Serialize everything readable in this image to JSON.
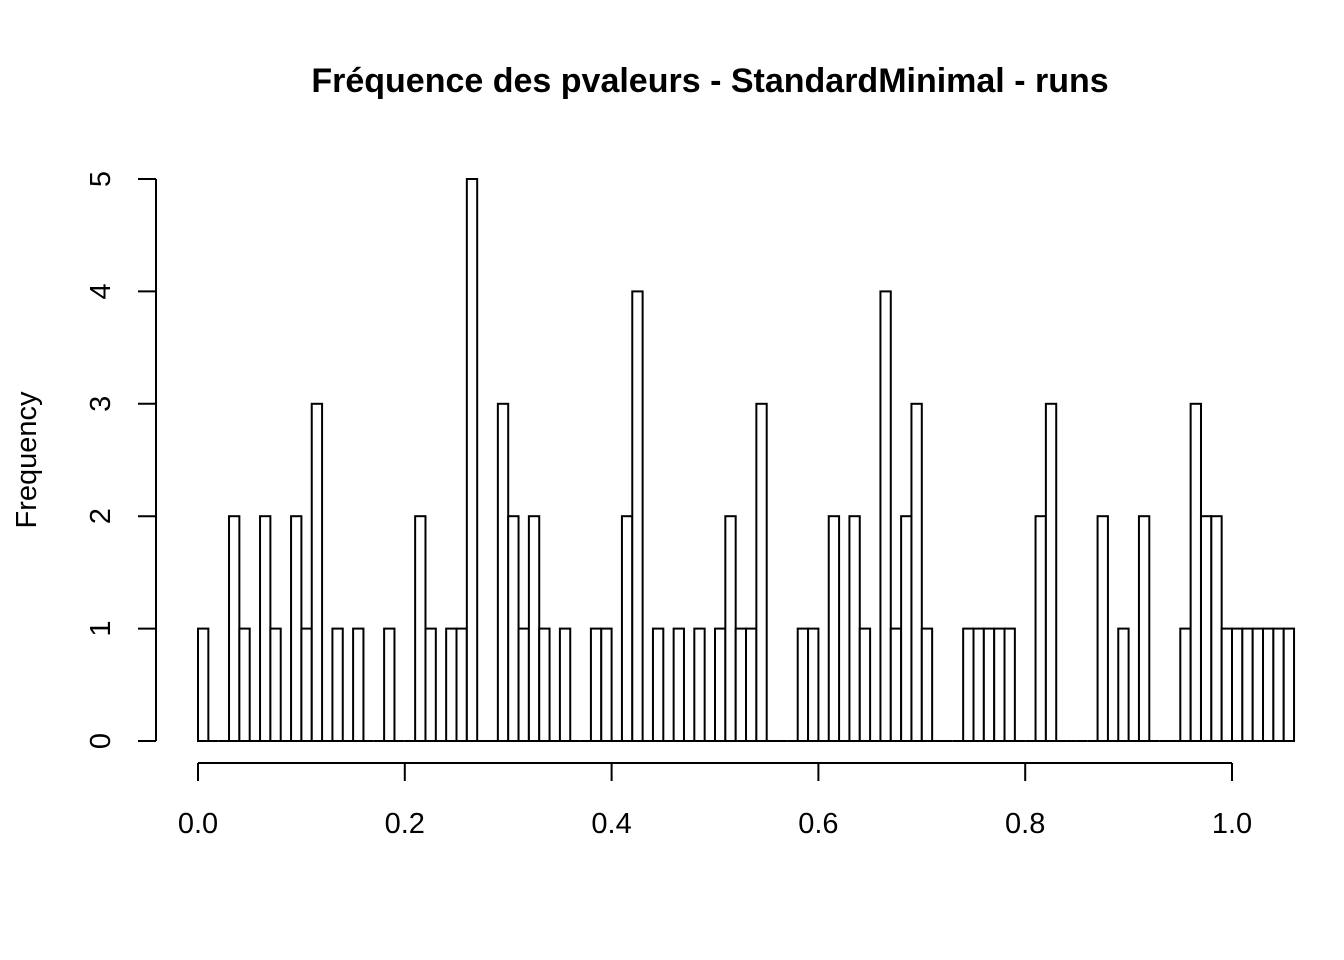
{
  "chart_data": {
    "type": "bar",
    "title": "Fréquence des pvaleurs - StandardMinimal - runs",
    "xlabel": "",
    "ylabel": "Frequency",
    "bin_width": 0.01,
    "x_start": 0.0,
    "xlim": [
      0,
      1
    ],
    "ylim": [
      0,
      5
    ],
    "x_ticks": [
      "0.0",
      "0.2",
      "0.4",
      "0.6",
      "0.8",
      "1.0"
    ],
    "y_ticks": [
      "0",
      "1",
      "2",
      "3",
      "4",
      "5"
    ],
    "values": [
      1,
      0,
      0,
      2,
      1,
      0,
      2,
      1,
      0,
      2,
      1,
      3,
      0,
      1,
      0,
      1,
      0,
      0,
      1,
      0,
      0,
      2,
      1,
      0,
      1,
      1,
      5,
      0,
      0,
      3,
      2,
      1,
      2,
      1,
      0,
      1,
      0,
      0,
      1,
      1,
      0,
      2,
      4,
      0,
      1,
      0,
      1,
      0,
      1,
      0,
      1,
      2,
      1,
      1,
      3,
      0,
      0,
      0,
      1,
      1,
      0,
      2,
      0,
      2,
      1,
      0,
      4,
      1,
      2,
      3,
      1,
      0,
      0,
      0,
      1,
      1,
      1,
      1,
      1,
      0,
      0,
      2,
      3,
      0,
      0,
      0,
      0,
      2,
      0,
      1,
      0,
      2,
      0,
      0,
      0,
      1,
      3,
      2,
      2,
      1,
      1,
      1,
      1,
      1,
      1,
      1
    ]
  }
}
